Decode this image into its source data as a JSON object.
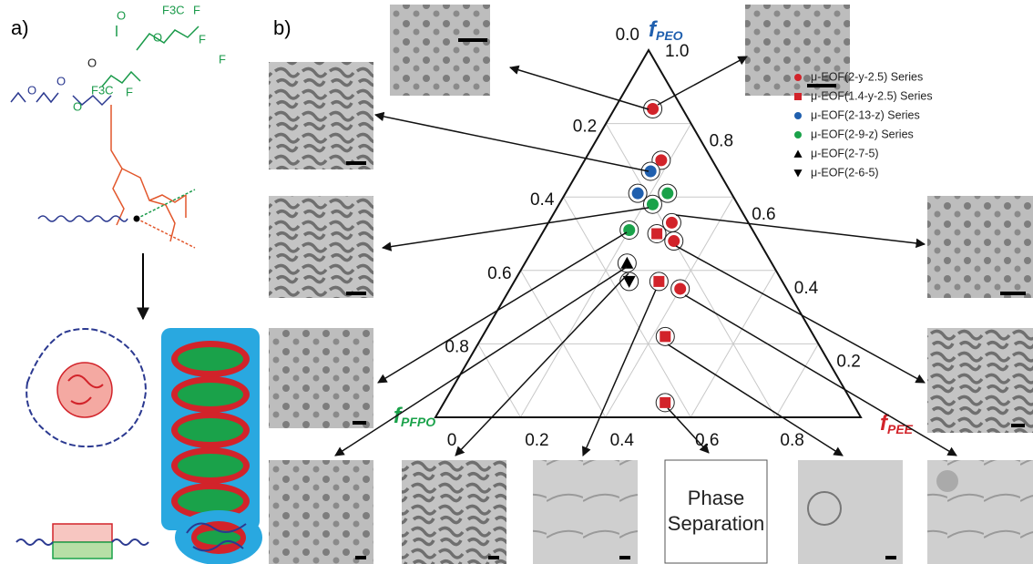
{
  "panel_labels": [
    "a)",
    "b)"
  ],
  "structure_labels": [
    "O",
    "O",
    "O",
    "O",
    "O",
    "F3C",
    "F",
    "O",
    "F",
    "F",
    "F3C",
    "F"
  ],
  "ternary": {
    "apex_label": {
      "symbol": "f",
      "subscript": "PEO"
    },
    "left_label": {
      "symbol": "f",
      "subscript": "PFPO"
    },
    "right_label": {
      "symbol": "f",
      "subscript": "PEE"
    },
    "fPFPO_ticks": [
      {
        "value": 0,
        "label": "0.0"
      },
      0.2,
      0.4,
      0.6,
      0.8
    ],
    "fPEO_ticks": [
      {
        "value": 1,
        "label": "1.0"
      },
      0.8,
      0.6,
      0.4,
      0.2
    ],
    "fPEE_ticks": [
      0,
      0.2,
      0.4,
      0.6,
      0.8
    ],
    "series": [
      {
        "name": "μ-EOF(2-y-2.5) Series",
        "color": "#d2232a",
        "marker": "circle",
        "points": [
          {
            "fPEO": 0.84,
            "fPEE": 0.09
          },
          {
            "fPEO": 0.7,
            "fPEE": 0.18
          },
          {
            "fPEO": 0.53,
            "fPEE": 0.29
          },
          {
            "fPEO": 0.48,
            "fPEE": 0.32
          },
          {
            "fPEO": 0.35,
            "fPEE": 0.4
          }
        ]
      },
      {
        "name": "μ-EOF(1.4-y-2.5) Series",
        "color": "#d2232a",
        "marker": "square",
        "points": [
          {
            "fPEO": 0.5,
            "fPEE": 0.27
          },
          {
            "fPEO": 0.37,
            "fPEE": 0.34
          },
          {
            "fPEO": 0.22,
            "fPEE": 0.43
          },
          {
            "fPEO": 0.04,
            "fPEE": 0.52
          }
        ]
      },
      {
        "name": "μ-EOF(2-13-z) Series",
        "color": "#1f5fae",
        "marker": "circle",
        "points": [
          {
            "fPEO": 0.67,
            "fPEE": 0.17
          },
          {
            "fPEO": 0.61,
            "fPEE": 0.17
          }
        ]
      },
      {
        "name": "μ-EOF(2-9-z) Series",
        "color": "#1aa24a",
        "marker": "circle",
        "points": [
          {
            "fPEO": 0.61,
            "fPEE": 0.24
          },
          {
            "fPEO": 0.58,
            "fPEE": 0.22
          },
          {
            "fPEO": 0.51,
            "fPEE": 0.2
          }
        ]
      },
      {
        "name": "μ-EOF(2-7-5)",
        "color": "#000000",
        "marker": "triangle-up",
        "points": [
          {
            "fPEO": 0.42,
            "fPEE": 0.24
          }
        ]
      },
      {
        "name": "μ-EOF(2-6-5)",
        "color": "#000000",
        "marker": "triangle-down",
        "points": [
          {
            "fPEO": 0.37,
            "fPEE": 0.27
          }
        ]
      }
    ]
  },
  "phase_separation": [
    "Phase",
    "Separation"
  ]
}
